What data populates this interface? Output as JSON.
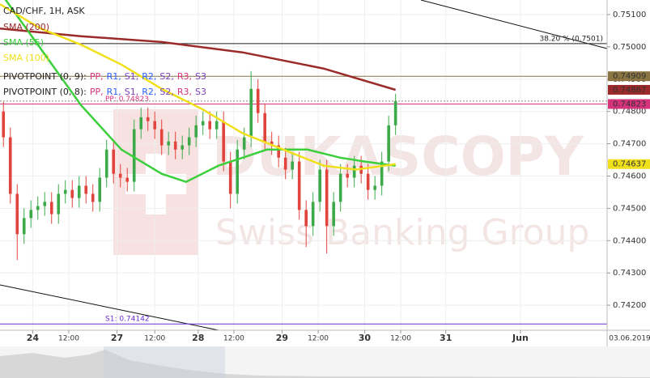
{
  "chart_data": {
    "type": "candlestick",
    "title": "CAD/CHF, 1H, ASK",
    "watermark": [
      "DUKASCOPY",
      "Swiss Banking Group"
    ],
    "date_label": "03.06.2019",
    "up_color": "#3daa4a",
    "down_color": "#e0443c",
    "grid": true,
    "xlim": [
      0,
      176.5
    ],
    "ylim": [
      0.741225,
      0.751451
    ],
    "yticks": [
      {
        "value": 0.751,
        "label": "0.75100"
      },
      {
        "value": 0.75,
        "label": "0.75000"
      },
      {
        "value": 0.749,
        "label": "0.74900"
      },
      {
        "value": 0.748,
        "label": "0.74800"
      },
      {
        "value": 0.747,
        "label": "0.74700"
      },
      {
        "value": 0.746,
        "label": "0.74600"
      },
      {
        "value": 0.745,
        "label": "0.74500"
      },
      {
        "value": 0.744,
        "label": "0.74400"
      },
      {
        "value": 0.743,
        "label": "0.74300"
      },
      {
        "value": 0.742,
        "label": "0.74200"
      }
    ],
    "xticks": [
      {
        "value": 9.5,
        "label": "24"
      },
      {
        "value": 20,
        "label": "12:00"
      },
      {
        "value": 34,
        "label": "27"
      },
      {
        "value": 45,
        "label": "12:00"
      },
      {
        "value": 57.6,
        "label": "28"
      },
      {
        "value": 68,
        "label": "12:00"
      },
      {
        "value": 82,
        "label": "29"
      },
      {
        "value": 92.5,
        "label": "12:00"
      },
      {
        "value": 106,
        "label": "30"
      },
      {
        "value": 116.5,
        "label": "12:00"
      },
      {
        "value": 129.6,
        "label": "31"
      },
      {
        "value": 151.3,
        "label": "Jun"
      }
    ],
    "x": [
      1,
      3,
      5,
      7,
      9,
      11,
      13,
      15,
      17,
      19,
      21,
      23,
      25,
      27,
      29,
      31,
      33,
      35,
      37,
      39,
      41,
      43,
      45,
      47,
      49,
      51,
      53,
      55,
      57,
      59,
      61,
      63,
      65,
      67,
      69,
      71,
      73,
      75,
      77,
      79,
      81,
      83,
      85,
      87,
      89,
      91,
      93,
      95,
      97,
      99,
      101,
      103,
      105,
      107,
      109,
      111,
      113,
      115
    ],
    "open": [
      0.748,
      0.7472,
      0.74545,
      0.7442,
      0.7447,
      0.74495,
      0.74507,
      0.7452,
      0.74482,
      0.74545,
      0.74557,
      0.74532,
      0.7457,
      0.74545,
      0.7452,
      0.74595,
      0.74682,
      0.74607,
      0.74595,
      0.74582,
      0.74745,
      0.74782,
      0.7477,
      0.74745,
      0.74695,
      0.74707,
      0.74682,
      0.74695,
      0.7472,
      0.74757,
      0.7477,
      0.74745,
      0.7477,
      0.74645,
      0.74545,
      0.74682,
      0.7472,
      0.7487,
      0.74795,
      0.74707,
      0.74695,
      0.74657,
      0.7462,
      0.74645,
      0.74495,
      0.74445,
      0.7452,
      0.7462,
      0.74445,
      0.7452,
      0.74607,
      0.74595,
      0.74632,
      0.74607,
      0.74557,
      0.7457,
      0.74645,
      0.74757
    ],
    "high": [
      0.7483,
      0.7475,
      0.74575,
      0.745,
      0.74525,
      0.74537,
      0.7455,
      0.7455,
      0.74575,
      0.74587,
      0.74587,
      0.746,
      0.746,
      0.74575,
      0.74625,
      0.74712,
      0.74712,
      0.74637,
      0.74625,
      0.74775,
      0.74812,
      0.74812,
      0.748,
      0.74775,
      0.74737,
      0.74737,
      0.74725,
      0.7475,
      0.74787,
      0.748,
      0.748,
      0.748,
      0.748,
      0.74675,
      0.74712,
      0.7475,
      0.74925,
      0.749,
      0.74825,
      0.74737,
      0.74725,
      0.74687,
      0.74675,
      0.74675,
      0.74525,
      0.7455,
      0.7465,
      0.7465,
      0.7455,
      0.74637,
      0.74637,
      0.74662,
      0.74662,
      0.74637,
      0.746,
      0.74675,
      0.74787,
      0.74855
    ],
    "low": [
      0.7469,
      0.74515,
      0.7434,
      0.7439,
      0.7444,
      0.74465,
      0.74477,
      0.74452,
      0.74452,
      0.74515,
      0.74502,
      0.74502,
      0.74515,
      0.7449,
      0.7449,
      0.74565,
      0.74577,
      0.74565,
      0.74552,
      0.74552,
      0.74715,
      0.7474,
      0.74715,
      0.74665,
      0.74665,
      0.74652,
      0.74652,
      0.74665,
      0.7469,
      0.74727,
      0.74715,
      0.74715,
      0.74615,
      0.745,
      0.74515,
      0.74652,
      0.7469,
      0.74765,
      0.74677,
      0.74665,
      0.74627,
      0.7459,
      0.7459,
      0.74465,
      0.7438,
      0.74415,
      0.7449,
      0.7436,
      0.74415,
      0.7449,
      0.74565,
      0.74565,
      0.74577,
      0.74527,
      0.74527,
      0.7454,
      0.74615,
      0.74727
    ],
    "close": [
      0.7472,
      0.74545,
      0.7442,
      0.7447,
      0.74495,
      0.74507,
      0.7452,
      0.74482,
      0.74545,
      0.74557,
      0.74532,
      0.7457,
      0.74545,
      0.7452,
      0.74595,
      0.74682,
      0.74607,
      0.74595,
      0.74582,
      0.74745,
      0.74782,
      0.7477,
      0.74745,
      0.74695,
      0.74707,
      0.74682,
      0.74695,
      0.7472,
      0.74757,
      0.7477,
      0.74745,
      0.7477,
      0.74645,
      0.74545,
      0.74682,
      0.7472,
      0.7487,
      0.74795,
      0.74707,
      0.74695,
      0.74657,
      0.7462,
      0.74645,
      0.74495,
      0.74445,
      0.7452,
      0.7462,
      0.74445,
      0.7452,
      0.74607,
      0.74595,
      0.74632,
      0.74607,
      0.74557,
      0.7457,
      0.74645,
      0.74757,
      0.74832
    ],
    "lines": [
      {
        "name": "SMA (200)",
        "color": "#9b2a2a",
        "x": [
          0,
          23.5,
          47,
          70.5,
          94,
          115
        ],
        "values": [
          0.75057,
          0.75033,
          0.75015,
          0.74983,
          0.74933,
          0.74867
        ],
        "last_label": "0.74867"
      },
      {
        "name": "SMA (55)",
        "color": "#3ccf3c",
        "x": [
          0,
          11.8,
          23.5,
          35.3,
          47,
          54.1,
          63.5,
          70.6,
          77.6,
          89.4,
          98.8,
          105.9,
          115
        ],
        "values": [
          0.7517,
          0.74995,
          0.7482,
          0.74682,
          0.74607,
          0.74582,
          0.74632,
          0.74657,
          0.74682,
          0.74682,
          0.74657,
          0.74645,
          0.74632
        ]
      },
      {
        "name": "SMA (100)",
        "color": "#f0e01c",
        "x": [
          0,
          11.8,
          23.5,
          35.3,
          47,
          58.8,
          70.6,
          82.4,
          94.1,
          103.5,
          115
        ],
        "values": [
          0.75132,
          0.75057,
          0.75007,
          0.74945,
          0.7487,
          0.74807,
          0.74732,
          0.74682,
          0.74632,
          0.7462,
          0.74637
        ],
        "last_label": "0.74637"
      }
    ],
    "pivots": [
      {
        "name": "PIVOTPOINT (0, 9):",
        "items": [
          "PP,",
          "R1,",
          "S1,",
          "R2,",
          "S2,",
          "R3,",
          "S3"
        ],
        "colors": [
          "#d6337c",
          "#2962ff",
          "#7b3fbf",
          "#2962ff",
          "#7b3fbf",
          "#d6337c",
          "#7b3fbf"
        ]
      },
      {
        "name": "PIVOTPOINT (0, 8):",
        "items": [
          "PP,",
          "R1,",
          "S1,",
          "R2,",
          "S2,",
          "R3,",
          "S3"
        ],
        "colors": [
          "#d6337c",
          "#2962ff",
          "#7b3fbf",
          "#2962ff",
          "#7b3fbf",
          "#d6337c",
          "#7b3fbf"
        ]
      }
    ],
    "levels": [
      {
        "value": 0.7501,
        "text": "38.20 % (0.7501)",
        "color": "#222222"
      },
      {
        "value": 0.74909,
        "label": "0.74909",
        "color": "#8a7442"
      },
      {
        "value": 0.74823,
        "text": "PP: 0.74823",
        "label": "0.74823",
        "color": "#d6337c"
      },
      {
        "value": 0.74142,
        "text": "S1: 0.74142",
        "color": "#6a2fd6"
      }
    ]
  }
}
